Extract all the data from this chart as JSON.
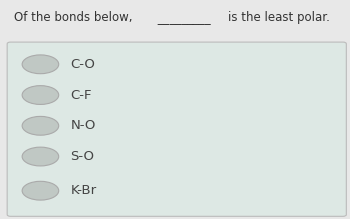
{
  "title_pre": "Of the bonds below,",
  "title_blank": " _________ ",
  "title_post": "is the least polar.",
  "options": [
    "C-O",
    "C-F",
    "N-O",
    "S-O",
    "K-Br"
  ],
  "fig_bg": "#e8e8e8",
  "box_bg": "#dde8e4",
  "box_edge": "#bbbbbb",
  "text_color": "#444444",
  "title_color": "#333333",
  "circle_fill": "#c0c8c4",
  "circle_edge": "#aaaaaa",
  "title_fontsize": 8.5,
  "option_fontsize": 9.5
}
